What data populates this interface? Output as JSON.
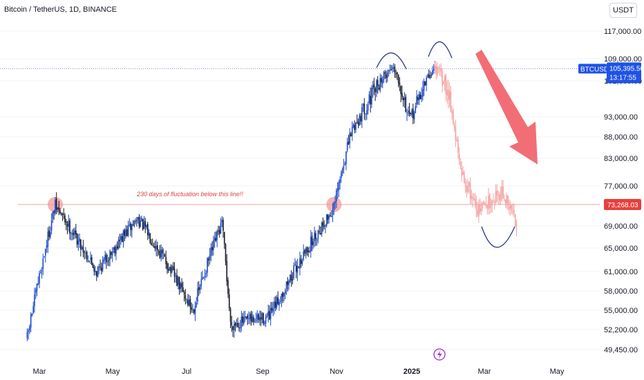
{
  "header": {
    "symbol": "Bitcoin / TetherUS, 1D, BINANCE",
    "currency_button": "USDT"
  },
  "colors": {
    "up_candle": "#1848cc",
    "down_candle": "#131722",
    "forecast_candle": "#f3a3a0",
    "resistance_line": "#f4a0a0",
    "current_price_line": "#6e8fd8",
    "price_tag_blue": "#1e53e5",
    "price_tag_red": "#e8413d",
    "annotation_red": "#e0443a",
    "arrow_red": "#f05a64",
    "circle_fill": "#f39a9a",
    "arc_color": "#1c2a86"
  },
  "chart_data": {
    "type": "candlestick",
    "symbol": "BTCUSDT",
    "timeframe": "1D",
    "exchange": "BINANCE",
    "x_axis_labels": [
      "Mar",
      "May",
      "Jul",
      "Sep",
      "Nov",
      "2025",
      "Mar",
      "May"
    ],
    "y_axis_labels": [
      117000,
      109000,
      101000,
      93000,
      88000,
      83000,
      77000,
      69000,
      65000,
      61000,
      58000,
      55000,
      52200,
      49450
    ],
    "y_axis_text": [
      "117,000.00",
      "109,000.00",
      "101,000.00",
      "93,000.00",
      "88,000.00",
      "83,000.00",
      "77,000.00",
      "69,000.00",
      "65,000.00",
      "61,000.00",
      "58,000.00",
      "55,000.00",
      "52,200.00",
      "49,450.00"
    ],
    "current_price": {
      "label": "BTCUSDT",
      "price": "105,395.50",
      "countdown": "13:17:55",
      "value": 105395.5
    },
    "resistance": {
      "price": "73,268.03",
      "value": 73268.03,
      "annotation": "230 days of fluctuation below this line!!"
    },
    "price_path_key_points": [
      {
        "date": "2024-02-20",
        "close": 51000
      },
      {
        "date": "2024-03-04",
        "close": 63000
      },
      {
        "date": "2024-03-14",
        "close": 73000
      },
      {
        "date": "2024-04-17",
        "close": 61000
      },
      {
        "date": "2024-05-21",
        "close": 70500
      },
      {
        "date": "2024-07-05",
        "close": 55000
      },
      {
        "date": "2024-07-29",
        "close": 69500
      },
      {
        "date": "2024-08-05",
        "close": 53000
      },
      {
        "date": "2024-09-06",
        "close": 54000
      },
      {
        "date": "2024-10-29",
        "close": 72500
      },
      {
        "date": "2024-11-13",
        "close": 90000
      },
      {
        "date": "2024-12-17",
        "close": 106500
      },
      {
        "date": "2024-12-30",
        "close": 92000
      },
      {
        "date": "2025-01-20",
        "close": 106000
      }
    ],
    "projection_key_points": [
      {
        "date": "2025-01-20",
        "close": 106000
      },
      {
        "date": "2025-02-01",
        "close": 98000
      },
      {
        "date": "2025-02-10",
        "close": 80000
      },
      {
        "date": "2025-02-25",
        "close": 72000
      },
      {
        "date": "2025-03-15",
        "close": 76000
      },
      {
        "date": "2025-03-28",
        "close": 70000
      }
    ]
  }
}
